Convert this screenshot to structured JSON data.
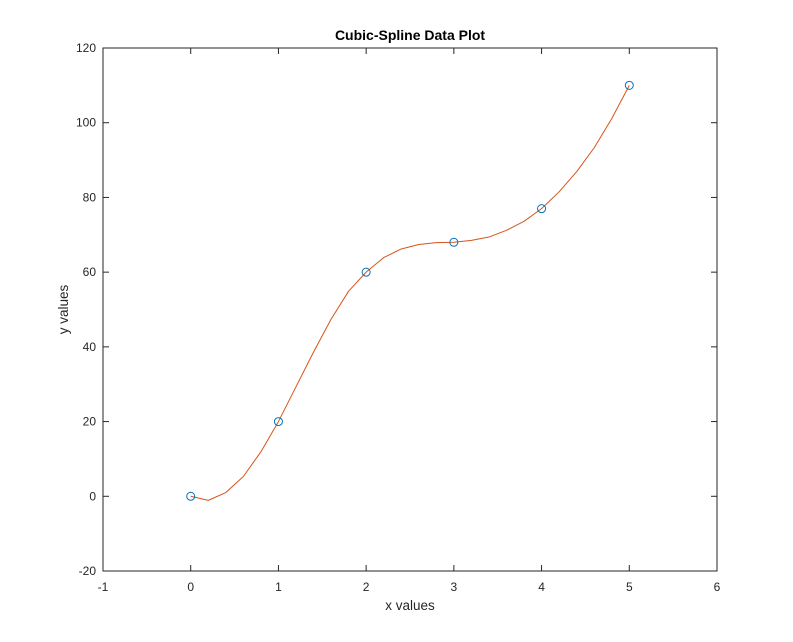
{
  "chart_data": {
    "type": "line",
    "title": "Cubic-Spline Data Plot",
    "xlabel": "x values",
    "ylabel": "y values",
    "xlim": [
      -1,
      6
    ],
    "ylim": [
      -20,
      120
    ],
    "xticks": [
      -1,
      0,
      1,
      2,
      3,
      4,
      5,
      6
    ],
    "yticks": [
      -20,
      0,
      20,
      40,
      60,
      80,
      100,
      120
    ],
    "xtick_labels": [
      "-1",
      "0",
      "1",
      "2",
      "3",
      "4",
      "5",
      "6"
    ],
    "ytick_labels": [
      "-20",
      "0",
      "20",
      "40",
      "60",
      "80",
      "100",
      "120"
    ],
    "grid": true,
    "series": [
      {
        "kind": "markers",
        "marker": "circle",
        "color": "#0072bd",
        "x": [
          0,
          1,
          2,
          3,
          4,
          5
        ],
        "y": [
          0,
          20,
          60,
          68,
          77,
          110
        ]
      },
      {
        "kind": "line",
        "color": "#d95319",
        "x": [
          0,
          0.2,
          0.4,
          0.6,
          0.8,
          1.0,
          1.2,
          1.4,
          1.6,
          1.8,
          2.0,
          2.2,
          2.4,
          2.6,
          2.8,
          3.0,
          3.2,
          3.4,
          3.6,
          3.8,
          4.0,
          4.2,
          4.4,
          4.6,
          4.8,
          5.0
        ],
        "y": [
          0,
          -1.1,
          1.0,
          5.3,
          11.9,
          20.0,
          29.3,
          38.6,
          47.4,
          54.9,
          60.0,
          63.9,
          66.2,
          67.4,
          67.9,
          68.0,
          68.5,
          69.4,
          71.2,
          73.6,
          77.0,
          81.5,
          86.9,
          93.3,
          101.1,
          110.0
        ]
      }
    ]
  }
}
